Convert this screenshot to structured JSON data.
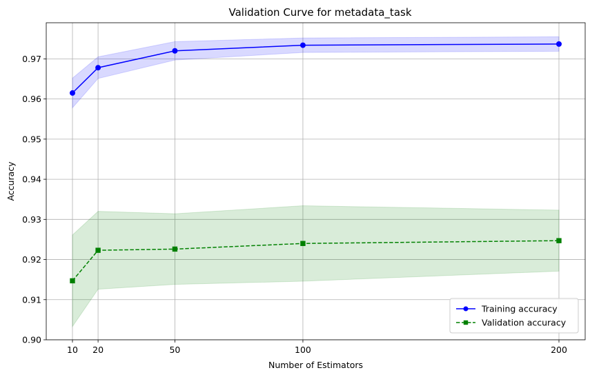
{
  "chart_data": {
    "type": "line",
    "title": "Validation Curve for metadata_task",
    "xlabel": "Number of Estimators",
    "ylabel": "Accuracy",
    "x": [
      10,
      20,
      50,
      100,
      200
    ],
    "xticks": [
      10,
      20,
      50,
      100,
      200
    ],
    "yticks": [
      0.9,
      0.91,
      0.92,
      0.93,
      0.94,
      0.95,
      0.96,
      0.97
    ],
    "ylim": [
      0.9,
      0.979
    ],
    "xlim": [
      10,
      200
    ],
    "grid": true,
    "legend_position": "bottom-right",
    "series": [
      {
        "name": "Training accuracy",
        "values": [
          0.9615,
          0.9678,
          0.972,
          0.9734,
          0.9737
        ],
        "lower": [
          0.9578,
          0.9651,
          0.9697,
          0.9716,
          0.9719
        ],
        "upper": [
          0.9652,
          0.9705,
          0.9743,
          0.9752,
          0.9755
        ],
        "color": "#0000ff",
        "band_color": "#0000ff",
        "line_style": "solid",
        "marker": "circle"
      },
      {
        "name": "Validation accuracy",
        "values": [
          0.9147,
          0.9223,
          0.9226,
          0.924,
          0.9247
        ],
        "lower": [
          0.9033,
          0.9126,
          0.9138,
          0.9146,
          0.9171
        ],
        "upper": [
          0.9261,
          0.932,
          0.9314,
          0.9334,
          0.9323
        ],
        "color": "#008000",
        "band_color": "#008000",
        "line_style": "dashed",
        "marker": "square"
      }
    ]
  }
}
